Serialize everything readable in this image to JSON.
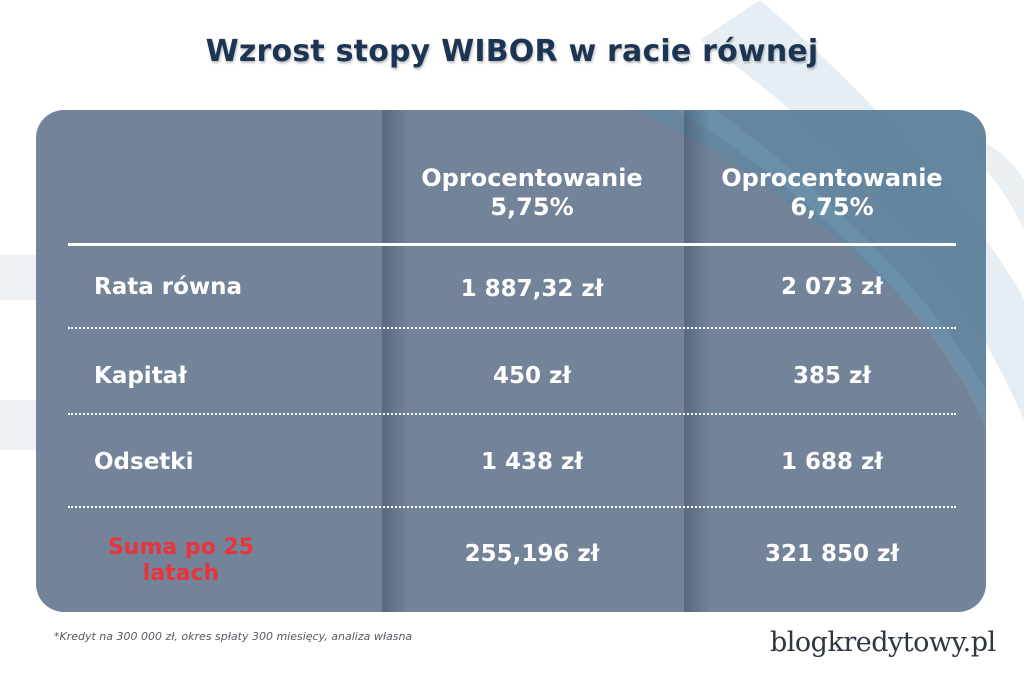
{
  "title": "Wzrost stopy WIBOR w racie równej",
  "table": {
    "columns": [
      {
        "line1": "Oprocentowanie",
        "line2": "5,75%"
      },
      {
        "line1": "Oprocentowanie",
        "line2": "6,75%"
      }
    ],
    "rows": [
      {
        "label": "Rata równa",
        "values": [
          "1 887,32 zł",
          "2 073 zł"
        ]
      },
      {
        "label": "Kapitał",
        "values": [
          "450 zł",
          "385 zł"
        ]
      },
      {
        "label": "Odsetki",
        "values": [
          "1 438 zł",
          "1 688 zł"
        ]
      },
      {
        "label": "Suma po 25 latach",
        "values": [
          "255,196 zł",
          "321 850 zł"
        ],
        "highlight": true
      }
    ]
  },
  "footnote": "*Kredyt na 300 000 zł, okres spłaty 300 miesięcy, analiza własna",
  "logo": "blogkredytowy.pl",
  "colors": {
    "title": "#1c3553",
    "card": "#5e728c",
    "highlight_label": "#e8343a",
    "text": "#ffffff"
  }
}
